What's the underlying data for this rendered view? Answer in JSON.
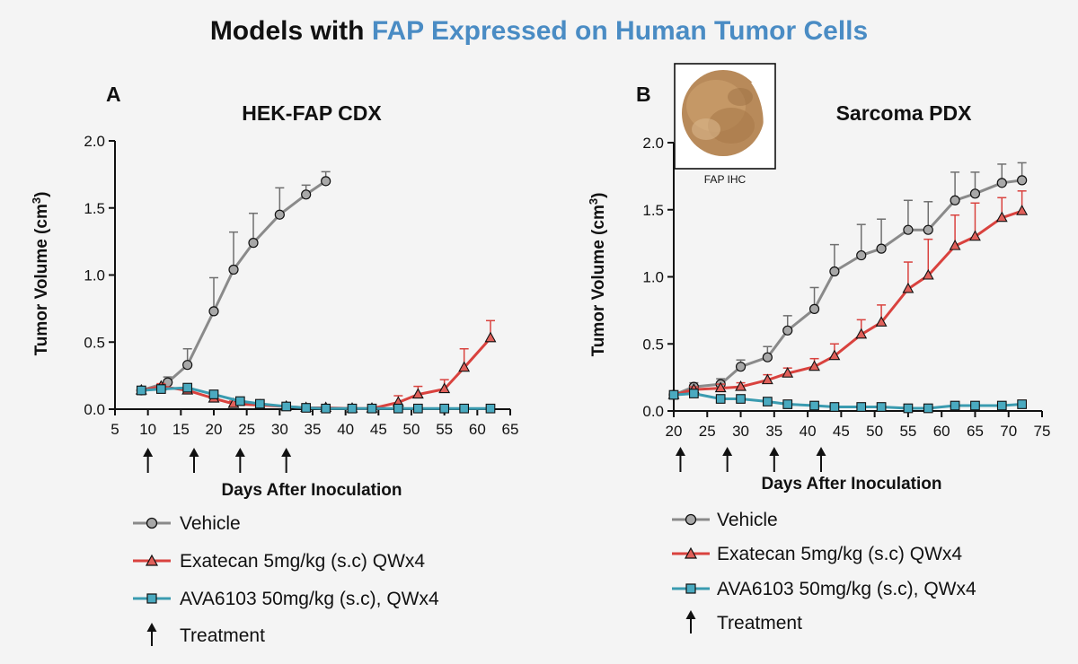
{
  "header": {
    "title_part1": "Models with ",
    "title_part2": "FAP Expressed on Human Tumor Cells"
  },
  "colors": {
    "vehicle": "#8a8a8a",
    "exatecan": "#d9423e",
    "ava6103": "#3a9bb0",
    "title_accent": "#4a8cc4"
  },
  "icons": {
    "treatment": "up-arrow-icon",
    "ihc_image": "tissue-stain-image"
  },
  "legend": {
    "vehicle": "Vehicle",
    "exatecan": "Exatecan 5mg/kg (s.c) QWx4",
    "ava6103": "AVA6103 50mg/kg (s.c), QWx4",
    "treatment": "Treatment"
  },
  "panelB_extra": {
    "ihc_caption": "FAP IHC"
  },
  "chart_data": [
    {
      "type": "line",
      "panel": "A",
      "title": "HEK-FAP CDX",
      "xlabel": "Days After Inoculation",
      "ylabel": "Tumor Volume (cm3)",
      "xlim": [
        5,
        65
      ],
      "ylim": [
        0,
        2.0
      ],
      "xticks": [
        5,
        10,
        15,
        20,
        25,
        30,
        35,
        40,
        45,
        50,
        55,
        60,
        65
      ],
      "yticks": [
        0.0,
        0.5,
        1.0,
        1.5,
        2.0
      ],
      "ytick_labels": [
        "0.0",
        "0.5",
        "1.0",
        "1.5",
        "2.0"
      ],
      "treatment_days": [
        10,
        17,
        24,
        31
      ],
      "series": [
        {
          "name": "Vehicle",
          "marker": "circle",
          "x": [
            9,
            13,
            16,
            20,
            23,
            26,
            30,
            34,
            37
          ],
          "y": [
            0.14,
            0.2,
            0.33,
            0.73,
            1.04,
            1.24,
            1.45,
            1.6,
            1.7
          ],
          "err": [
            0.02,
            0.04,
            0.12,
            0.25,
            0.28,
            0.22,
            0.2,
            0.07,
            0.07
          ]
        },
        {
          "name": "Exatecan 5mg/kg (s.c) QWx4",
          "marker": "triangle",
          "x": [
            9,
            12,
            16,
            20,
            23,
            27,
            31,
            34,
            37,
            41,
            44,
            48,
            51,
            55,
            58,
            62
          ],
          "y": [
            0.14,
            0.17,
            0.14,
            0.08,
            0.04,
            0.03,
            0.02,
            0.01,
            0.01,
            0.005,
            0.005,
            0.05,
            0.11,
            0.15,
            0.31,
            0.53
          ],
          "err": [
            0.02,
            0.02,
            0.04,
            0.03,
            0.02,
            0.01,
            0.01,
            0.005,
            0.005,
            0.005,
            0.005,
            0.05,
            0.06,
            0.07,
            0.14,
            0.13
          ]
        },
        {
          "name": "AVA6103 50mg/kg (s.c), QWx4",
          "marker": "square",
          "x": [
            9,
            12,
            16,
            20,
            24,
            27,
            31,
            34,
            37,
            41,
            44,
            48,
            51,
            55,
            58,
            62
          ],
          "y": [
            0.14,
            0.15,
            0.16,
            0.11,
            0.06,
            0.04,
            0.02,
            0.01,
            0.005,
            0.005,
            0.005,
            0.005,
            0.005,
            0.005,
            0.005,
            0.005
          ],
          "err": [
            0.02,
            0.02,
            0.03,
            0.03,
            0.02,
            0.01,
            0.01,
            0.005,
            0.005,
            0.005,
            0.005,
            0.005,
            0.005,
            0.005,
            0.005,
            0.005
          ]
        }
      ]
    },
    {
      "type": "line",
      "panel": "B",
      "title": "Sarcoma PDX",
      "xlabel": "Days After Inoculation",
      "ylabel": "Tumor Volume (cm3)",
      "xlim": [
        20,
        75
      ],
      "ylim": [
        0,
        2.0
      ],
      "xticks": [
        20,
        25,
        30,
        35,
        40,
        45,
        50,
        55,
        60,
        65,
        70,
        75
      ],
      "yticks": [
        0.0,
        0.5,
        1.0,
        1.5,
        2.0
      ],
      "ytick_labels": [
        "0.0",
        "0.5",
        "1.0",
        "1.5",
        "2.0"
      ],
      "treatment_days": [
        21,
        28,
        35,
        42
      ],
      "series": [
        {
          "name": "Vehicle",
          "marker": "circle",
          "x": [
            20,
            23,
            27,
            30,
            34,
            37,
            41,
            44,
            48,
            51,
            55,
            58,
            62,
            65,
            69,
            72
          ],
          "y": [
            0.12,
            0.18,
            0.2,
            0.33,
            0.4,
            0.6,
            0.76,
            1.04,
            1.16,
            1.21,
            1.35,
            1.35,
            1.57,
            1.62,
            1.7,
            1.72
          ],
          "err": [
            0.02,
            0.03,
            0.04,
            0.05,
            0.08,
            0.11,
            0.16,
            0.2,
            0.23,
            0.22,
            0.22,
            0.21,
            0.21,
            0.16,
            0.14,
            0.13
          ]
        },
        {
          "name": "Exatecan 5mg/kg (s.c) QWx4",
          "marker": "triangle",
          "x": [
            20,
            23,
            27,
            30,
            34,
            37,
            41,
            44,
            48,
            51,
            55,
            58,
            62,
            65,
            69,
            72
          ],
          "y": [
            0.12,
            0.16,
            0.17,
            0.18,
            0.23,
            0.28,
            0.33,
            0.41,
            0.57,
            0.66,
            0.91,
            1.01,
            1.23,
            1.3,
            1.44,
            1.49
          ],
          "err": [
            0.02,
            0.02,
            0.03,
            0.03,
            0.04,
            0.04,
            0.06,
            0.09,
            0.11,
            0.13,
            0.2,
            0.27,
            0.23,
            0.25,
            0.15,
            0.15
          ]
        },
        {
          "name": "AVA6103 50mg/kg (s.c), QWx4",
          "marker": "square",
          "x": [
            20,
            23,
            27,
            30,
            34,
            37,
            41,
            44,
            48,
            51,
            55,
            58,
            62,
            65,
            69,
            72
          ],
          "y": [
            0.12,
            0.13,
            0.09,
            0.09,
            0.07,
            0.05,
            0.04,
            0.03,
            0.03,
            0.03,
            0.02,
            0.02,
            0.04,
            0.04,
            0.04,
            0.05
          ],
          "err": [
            0.02,
            0.02,
            0.02,
            0.02,
            0.01,
            0.01,
            0.01,
            0.01,
            0.01,
            0.01,
            0.01,
            0.01,
            0.01,
            0.01,
            0.01,
            0.01
          ]
        }
      ]
    }
  ]
}
